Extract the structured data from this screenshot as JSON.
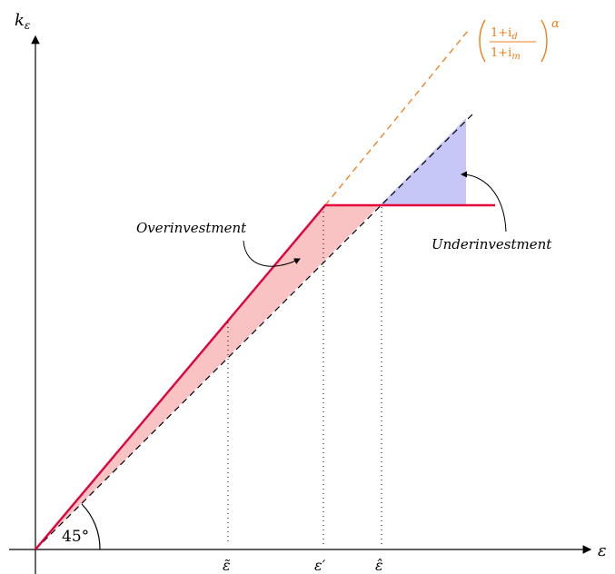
{
  "labels": {
    "y_axis": "k",
    "y_axis_sub": "ε",
    "x_axis": "ε",
    "overinvestment": "Overinvestment",
    "underinvestment": "Underinvestment",
    "angle": "45°",
    "tick_tilde": "ε̃",
    "tick_prime": "ε′",
    "tick_hat": "ε̂",
    "orange_num": "1+i",
    "orange_num_sub": "d",
    "orange_den": "1+i",
    "orange_den_sub": "m",
    "orange_exp": "α"
  },
  "colors": {
    "red_line": "#e4003a",
    "over_fill": "#f9c3c3",
    "under_fill": "#c7c7f7",
    "orange": "#f07d1a",
    "black": "#000000"
  }
}
